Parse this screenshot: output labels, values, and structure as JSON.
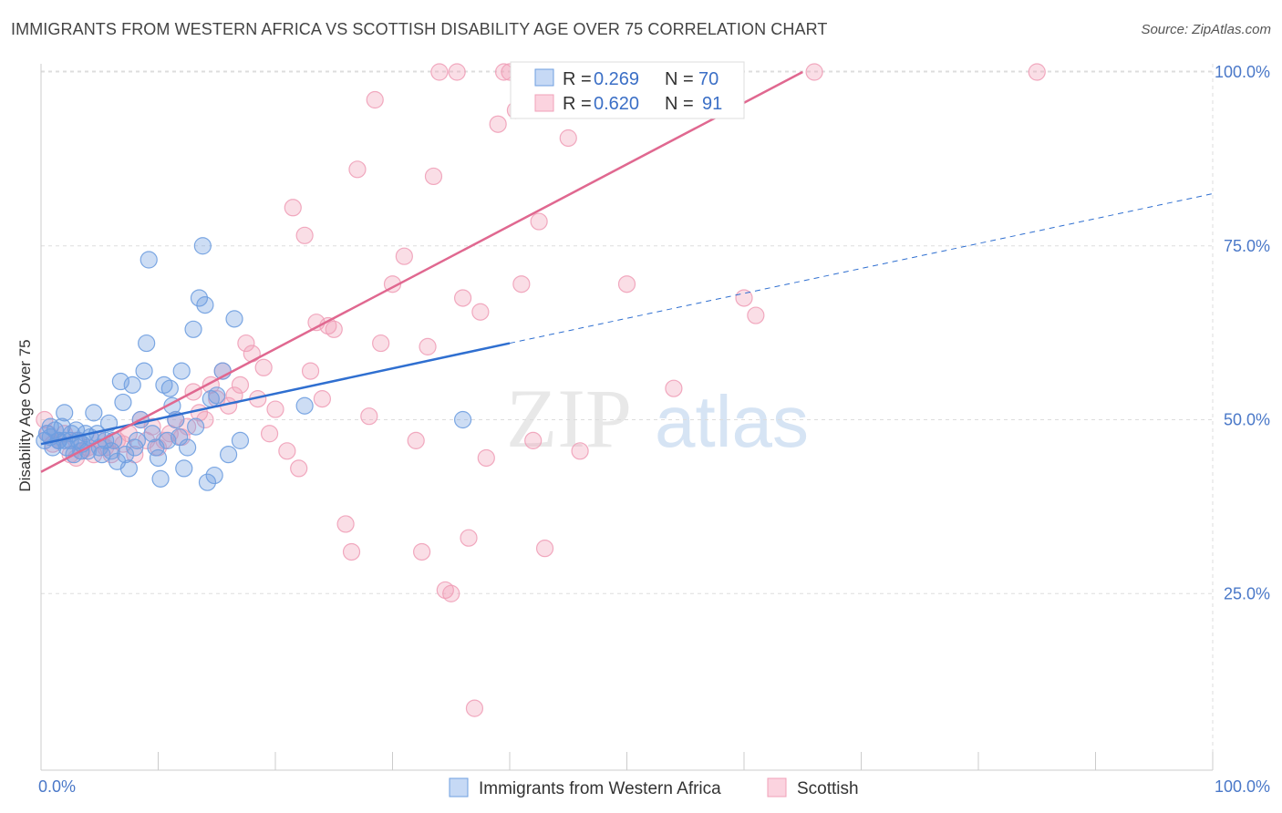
{
  "title": "IMMIGRANTS FROM WESTERN AFRICA VS SCOTTISH DISABILITY AGE OVER 75 CORRELATION CHART",
  "source": "Source: ZipAtlas.com",
  "watermark": {
    "zip": "ZIP",
    "atlas": "atlas"
  },
  "colors": {
    "blue": "#6f9fe0",
    "blue_line": "#2f6fd0",
    "pink": "#f0a0b8",
    "pink_line": "#e06890",
    "grid": "#dddddd",
    "axis_text": "#4a78c8"
  },
  "legend": {
    "rows": [
      {
        "r_label": "R =",
        "r_value": "0.269",
        "n_label": "N =",
        "n_value": "70"
      },
      {
        "r_label": "R =",
        "r_value": "0.620",
        "n_label": "N =",
        "n_value": "91"
      }
    ]
  },
  "chart_data": {
    "type": "scatter",
    "title": "IMMIGRANTS FROM WESTERN AFRICA VS SCOTTISH DISABILITY AGE OVER 75 CORRELATION CHART",
    "xlabel": "",
    "ylabel": "Disability Age Over 75",
    "xlim": [
      0,
      100
    ],
    "ylim": [
      0,
      102
    ],
    "x_tick_labels": [
      "0.0%",
      "100.0%"
    ],
    "y_tick_labels": [
      "25.0%",
      "50.0%",
      "75.0%",
      "100.0%"
    ],
    "y_ticks": [
      25,
      50,
      75,
      100
    ],
    "grid": true,
    "legend_position": "bottom",
    "series": [
      {
        "name": "Immigrants from Western Africa",
        "R": 0.269,
        "N": 70,
        "trend": {
          "solid": [
            [
              0,
              46.5
            ],
            [
              40,
              61.0
            ]
          ],
          "dashed": [
            [
              40,
              61.0
            ],
            [
              100,
              82.5
            ]
          ]
        },
        "points": [
          [
            0.3,
            47
          ],
          [
            0.5,
            48
          ],
          [
            0.8,
            47.5
          ],
          [
            1,
            46
          ],
          [
            1.2,
            48.5
          ],
          [
            1.5,
            47
          ],
          [
            1.8,
            49
          ],
          [
            2,
            51
          ],
          [
            2.2,
            46
          ],
          [
            2.5,
            47
          ],
          [
            2.8,
            45
          ],
          [
            3,
            48.5
          ],
          [
            3.2,
            47
          ],
          [
            3.5,
            46.5
          ],
          [
            3.8,
            48
          ],
          [
            4,
            45.5
          ],
          [
            4.2,
            47.5
          ],
          [
            4.5,
            51
          ],
          [
            4.8,
            48
          ],
          [
            5,
            46
          ],
          [
            5.2,
            45
          ],
          [
            5.5,
            47
          ],
          [
            5.8,
            49.5
          ],
          [
            6,
            45.5
          ],
          [
            6.2,
            47
          ],
          [
            6.5,
            44
          ],
          [
            6.8,
            55.5
          ],
          [
            7,
            52.5
          ],
          [
            7.2,
            45
          ],
          [
            7.5,
            43
          ],
          [
            7.8,
            55
          ],
          [
            8,
            46
          ],
          [
            8.2,
            47
          ],
          [
            8.5,
            50
          ],
          [
            8.8,
            57
          ],
          [
            9,
            61
          ],
          [
            9.2,
            73
          ],
          [
            9.5,
            48
          ],
          [
            9.8,
            46
          ],
          [
            10,
            44.5
          ],
          [
            10.2,
            41.5
          ],
          [
            10.5,
            55
          ],
          [
            10.8,
            47
          ],
          [
            11,
            54.5
          ],
          [
            11.2,
            52
          ],
          [
            11.5,
            50
          ],
          [
            11.8,
            47.5
          ],
          [
            12,
            57
          ],
          [
            12.2,
            43
          ],
          [
            12.5,
            46
          ],
          [
            13,
            63
          ],
          [
            13.2,
            49
          ],
          [
            13.5,
            67.5
          ],
          [
            13.8,
            75
          ],
          [
            14,
            66.5
          ],
          [
            14.2,
            41
          ],
          [
            14.5,
            53
          ],
          [
            14.8,
            42
          ],
          [
            15,
            53.5
          ],
          [
            15.5,
            57
          ],
          [
            16,
            45
          ],
          [
            16.5,
            64.5
          ],
          [
            17,
            47
          ],
          [
            0.8,
            49
          ],
          [
            1.5,
            47
          ],
          [
            2.6,
            48
          ],
          [
            3.4,
            45.5
          ],
          [
            22.5,
            52
          ],
          [
            36,
            50
          ],
          [
            2,
            47
          ]
        ]
      },
      {
        "name": "Scottish",
        "R": 0.62,
        "N": 91,
        "trend": {
          "solid": [
            [
              0,
              42.5
            ],
            [
              65,
              100
            ]
          ]
        },
        "points": [
          [
            0.3,
            50
          ],
          [
            0.6,
            48
          ],
          [
            1,
            46.5
          ],
          [
            1.5,
            47
          ],
          [
            2,
            48
          ],
          [
            2.5,
            45
          ],
          [
            3,
            47
          ],
          [
            3.5,
            45.5
          ],
          [
            4,
            46
          ],
          [
            4.5,
            45
          ],
          [
            5,
            47
          ],
          [
            5.5,
            46
          ],
          [
            6,
            45
          ],
          [
            6.5,
            47
          ],
          [
            7,
            46.5
          ],
          [
            7.5,
            48
          ],
          [
            8,
            45
          ],
          [
            8.5,
            50
          ],
          [
            9,
            47
          ],
          [
            9.5,
            49
          ],
          [
            10,
            46
          ],
          [
            10.5,
            47
          ],
          [
            11,
            48
          ],
          [
            11.5,
            50
          ],
          [
            12,
            47.5
          ],
          [
            12.5,
            49
          ],
          [
            13,
            54
          ],
          [
            13.5,
            51
          ],
          [
            14,
            50
          ],
          [
            14.5,
            55
          ],
          [
            15,
            53
          ],
          [
            15.5,
            57
          ],
          [
            16,
            52
          ],
          [
            16.5,
            53.5
          ],
          [
            17,
            55
          ],
          [
            17.5,
            61
          ],
          [
            18,
            59.5
          ],
          [
            18.5,
            53
          ],
          [
            19,
            57.5
          ],
          [
            19.5,
            48
          ],
          [
            20,
            51.5
          ],
          [
            21,
            45.5
          ],
          [
            21.5,
            80.5
          ],
          [
            22,
            43
          ],
          [
            22.5,
            76.5
          ],
          [
            23,
            57
          ],
          [
            23.5,
            64
          ],
          [
            24,
            53
          ],
          [
            24.5,
            63.5
          ],
          [
            25,
            63
          ],
          [
            26,
            35
          ],
          [
            26.5,
            31
          ],
          [
            27,
            86
          ],
          [
            28,
            50.5
          ],
          [
            28.5,
            96
          ],
          [
            29,
            61
          ],
          [
            30,
            69.5
          ],
          [
            31,
            73.5
          ],
          [
            32,
            47
          ],
          [
            32.5,
            31
          ],
          [
            33,
            60.5
          ],
          [
            33.5,
            85
          ],
          [
            34,
            100
          ],
          [
            34.5,
            25.5
          ],
          [
            35,
            25
          ],
          [
            35.5,
            100
          ],
          [
            36,
            67.5
          ],
          [
            36.5,
            33
          ],
          [
            37,
            8.5
          ],
          [
            37.5,
            65.5
          ],
          [
            38,
            44.5
          ],
          [
            39,
            92.5
          ],
          [
            39.5,
            100
          ],
          [
            40,
            100
          ],
          [
            40.5,
            94.5
          ],
          [
            41,
            69.5
          ],
          [
            42,
            47
          ],
          [
            42.5,
            78.5
          ],
          [
            43,
            31.5
          ],
          [
            44,
            100
          ],
          [
            44.5,
            100
          ],
          [
            45,
            90.5
          ],
          [
            46,
            45.5
          ],
          [
            48,
            100
          ],
          [
            50,
            69.5
          ],
          [
            52,
            100
          ],
          [
            54,
            54.5
          ],
          [
            58,
            100
          ],
          [
            60,
            67.5
          ],
          [
            61,
            65
          ],
          [
            66,
            100
          ],
          [
            85,
            100
          ],
          [
            3,
            44.5
          ]
        ]
      }
    ]
  },
  "bottom_legend": [
    {
      "label": "Immigrants from Western Africa"
    },
    {
      "label": "Scottish"
    }
  ]
}
